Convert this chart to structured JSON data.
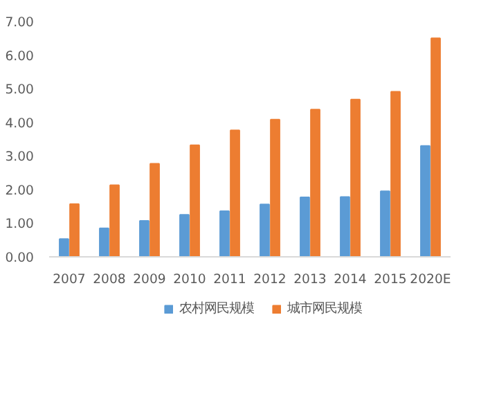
{
  "chart_data": {
    "type": "bar",
    "categories": [
      "2007",
      "2008",
      "2009",
      "2010",
      "2011",
      "2012",
      "2013",
      "2014",
      "2015",
      "2020E"
    ],
    "series": [
      {
        "name": "农村网民规模",
        "color": "#5b9bd5",
        "values": [
          0.53,
          0.85,
          1.07,
          1.25,
          1.36,
          1.56,
          1.77,
          1.78,
          1.95,
          3.3
        ]
      },
      {
        "name": "城市网民规模",
        "color": "#ed7d31",
        "values": [
          1.57,
          2.13,
          2.77,
          3.32,
          3.76,
          4.08,
          4.38,
          4.68,
          4.91,
          6.5
        ]
      }
    ],
    "ylim": [
      0,
      7
    ],
    "yticks": [
      {
        "value": 0,
        "label": "0.00"
      },
      {
        "value": 1,
        "label": "1.00"
      },
      {
        "value": 2,
        "label": "2.00"
      },
      {
        "value": 3,
        "label": "3.00"
      },
      {
        "value": 4,
        "label": "4.00"
      },
      {
        "value": 5,
        "label": "5.00"
      },
      {
        "value": 6,
        "label": "6.00"
      },
      {
        "value": 7,
        "label": "7.00"
      }
    ],
    "grid": false,
    "legend": "bottom"
  }
}
